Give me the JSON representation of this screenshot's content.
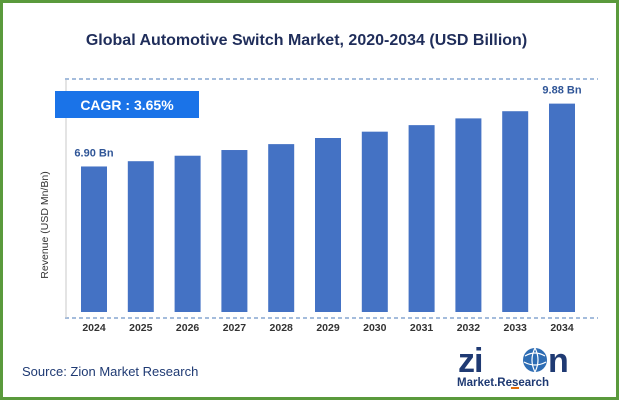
{
  "title": "Global Automotive Switch Market, 2020-2034 (USD Billion)",
  "cagr_label": "CAGR :  3.65%",
  "source": "Source: Zion Market Research",
  "logo": {
    "word": "zion",
    "subtext": "Market.Research"
  },
  "colors": {
    "bar": "#4472c4",
    "label": "#2f5597",
    "border": "#5a9a3c",
    "cagr_bg": "#1a73e8"
  },
  "chart_data": {
    "type": "bar",
    "categories": [
      "2024",
      "2025",
      "2026",
      "2027",
      "2028",
      "2029",
      "2030",
      "2031",
      "2032",
      "2033",
      "2034"
    ],
    "values": [
      6.9,
      7.15,
      7.41,
      7.68,
      7.96,
      8.25,
      8.55,
      8.86,
      9.18,
      9.52,
      9.88
    ],
    "data_labels": {
      "first": "6.90 Bn",
      "last": "9.88 Bn"
    },
    "ylabel": "Revenue (USD Mn/Bn)",
    "xlabel": "",
    "ylim": [
      0,
      11
    ],
    "grid": false
  }
}
